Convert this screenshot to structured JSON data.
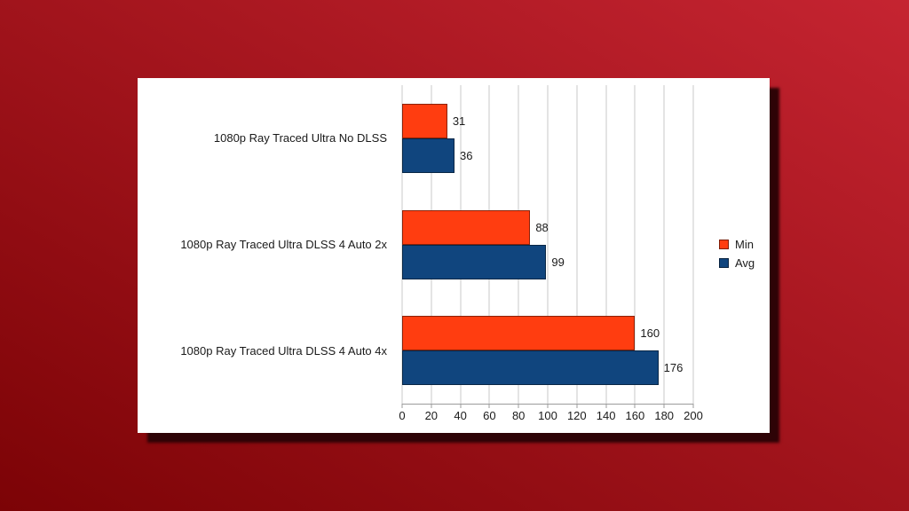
{
  "chart_data": {
    "type": "bar",
    "orientation": "horizontal",
    "title": "",
    "xlabel": "",
    "ylabel": "",
    "categories": [
      "1080p Ray Traced Ultra No DLSS",
      "1080p Ray Traced Ultra DLSS 4 Auto 2x",
      "1080p Ray Traced Ultra DLSS 4 Auto 4x"
    ],
    "series": [
      {
        "name": "Min",
        "color": "#ff3d10",
        "values": [
          31,
          88,
          160
        ]
      },
      {
        "name": "Avg",
        "color": "#10457e",
        "values": [
          36,
          99,
          176
        ]
      }
    ],
    "xlim": [
      0,
      200
    ],
    "x_ticks": [
      0,
      20,
      40,
      60,
      80,
      100,
      120,
      140,
      160,
      180,
      200
    ],
    "grid": true,
    "value_labels": true,
    "legend_position": "right",
    "legend_entries": [
      "Min",
      "Avg"
    ]
  },
  "style": {
    "background_gradient_from": "#7c0306",
    "background_gradient_to": "#c52431",
    "card_color": "#ffffff",
    "card_shadow_color": "#2e0306",
    "gridline_color": "#c9c9c9",
    "axis_color": "#9b9b9b",
    "text_color": "#1a1a1a",
    "bar_border_color": "rgba(0,0,0,0.45)"
  }
}
